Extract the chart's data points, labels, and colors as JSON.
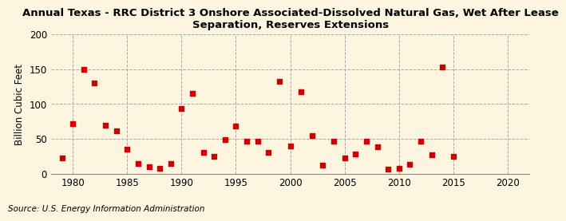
{
  "title_line1": "Annual Texas - RRC District 3 Onshore Associated-Dissolved Natural Gas, Wet After Lease",
  "title_line2": "Separation, Reserves Extensions",
  "ylabel": "Billion Cubic Feet",
  "source": "Source: U.S. Energy Information Administration",
  "background_color": "#fdf5e0",
  "plot_background_color": "#fdf5e0",
  "marker_color": "#cc0000",
  "years": [
    1979,
    1980,
    1981,
    1982,
    1983,
    1984,
    1985,
    1986,
    1987,
    1988,
    1989,
    1990,
    1991,
    1992,
    1993,
    1994,
    1995,
    1996,
    1997,
    1998,
    1999,
    2000,
    2001,
    2002,
    2003,
    2004,
    2005,
    2006,
    2007,
    2008,
    2009,
    2010,
    2011,
    2012,
    2013,
    2014,
    2015
  ],
  "values": [
    23,
    72,
    150,
    130,
    70,
    62,
    35,
    15,
    10,
    8,
    15,
    93,
    115,
    30,
    25,
    49,
    68,
    47,
    47,
    30,
    132,
    40,
    118,
    55,
    12,
    46,
    22,
    28,
    46,
    38,
    7,
    8,
    13,
    46,
    27,
    153,
    25
  ],
  "xlim": [
    1978,
    2022
  ],
  "ylim": [
    0,
    200
  ],
  "yticks": [
    0,
    50,
    100,
    150,
    200
  ],
  "xticks": [
    1980,
    1985,
    1990,
    1995,
    2000,
    2005,
    2010,
    2015,
    2020
  ],
  "grid_color": "#aaaaaa",
  "title_fontsize": 9.5,
  "label_fontsize": 8.5,
  "tick_fontsize": 8.5,
  "source_fontsize": 7.5
}
